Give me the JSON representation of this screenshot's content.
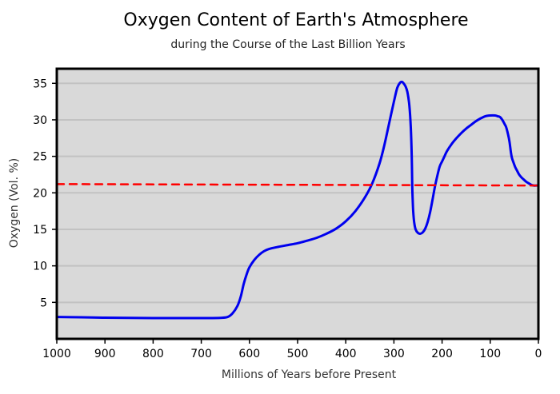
{
  "chart_data": {
    "type": "line",
    "title": "Oxygen Content of Earth's Atmosphere",
    "subtitle": "during the Course of the Last Billion Years",
    "xlabel": "Millions of Years before Present",
    "ylabel": "Oxygen (Vol. %)",
    "xlim": [
      1000,
      0
    ],
    "ylim": [
      0,
      37
    ],
    "x_ticks": [
      1000,
      900,
      800,
      700,
      600,
      500,
      400,
      300,
      200,
      100,
      0
    ],
    "y_ticks": [
      5,
      10,
      15,
      20,
      25,
      30,
      35
    ],
    "grid": "horizontal",
    "legend": "none",
    "colors": {
      "plot_background": "#d9d9d9",
      "grid": "#c2c2c2",
      "oxygen_line": "#0000ee",
      "reference_line": "#ff0000"
    },
    "series": [
      {
        "style": "solid",
        "x": [
          1000,
          950,
          900,
          850,
          800,
          750,
          700,
          660,
          645,
          635,
          625,
          618,
          612,
          606,
          600,
          590,
          580,
          570,
          560,
          540,
          520,
          500,
          480,
          460,
          440,
          420,
          400,
          380,
          360,
          345,
          330,
          320,
          310,
          300,
          293,
          287,
          283,
          280,
          276,
          272,
          268,
          265,
          263,
          262,
          261,
          260,
          258,
          255,
          250,
          245,
          240,
          235,
          230,
          225,
          220,
          215,
          210,
          205,
          200,
          195,
          190,
          180,
          170,
          160,
          150,
          140,
          130,
          120,
          110,
          100,
          90,
          85,
          80,
          75,
          70,
          67,
          63,
          60,
          57,
          55,
          52,
          48,
          44,
          40,
          35,
          30,
          25,
          20,
          15,
          10,
          5,
          0
        ],
        "y": [
          3.0,
          2.95,
          2.9,
          2.87,
          2.85,
          2.85,
          2.85,
          2.88,
          3.0,
          3.5,
          4.5,
          5.8,
          7.5,
          8.8,
          9.8,
          10.8,
          11.5,
          12.0,
          12.3,
          12.6,
          12.85,
          13.1,
          13.45,
          13.85,
          14.4,
          15.1,
          16.1,
          17.5,
          19.4,
          21.3,
          24.0,
          26.5,
          29.5,
          32.5,
          34.4,
          35.1,
          35.2,
          35.0,
          34.6,
          33.8,
          32.0,
          29.0,
          25.0,
          21.0,
          19.0,
          17.5,
          16.0,
          15.0,
          14.5,
          14.4,
          14.6,
          15.1,
          16.0,
          17.3,
          19.0,
          20.8,
          22.3,
          23.6,
          24.3,
          25.0,
          25.7,
          26.7,
          27.5,
          28.2,
          28.8,
          29.3,
          29.8,
          30.2,
          30.5,
          30.6,
          30.6,
          30.5,
          30.4,
          30.0,
          29.4,
          29.0,
          28.0,
          27.0,
          25.5,
          24.8,
          24.2,
          23.5,
          23.0,
          22.5,
          22.1,
          21.8,
          21.5,
          21.3,
          21.1,
          21.0,
          21.0,
          21.0
        ]
      },
      {
        "style": "dashed",
        "x": [
          1000,
          0
        ],
        "y": [
          21.2,
          21.0
        ]
      }
    ]
  }
}
